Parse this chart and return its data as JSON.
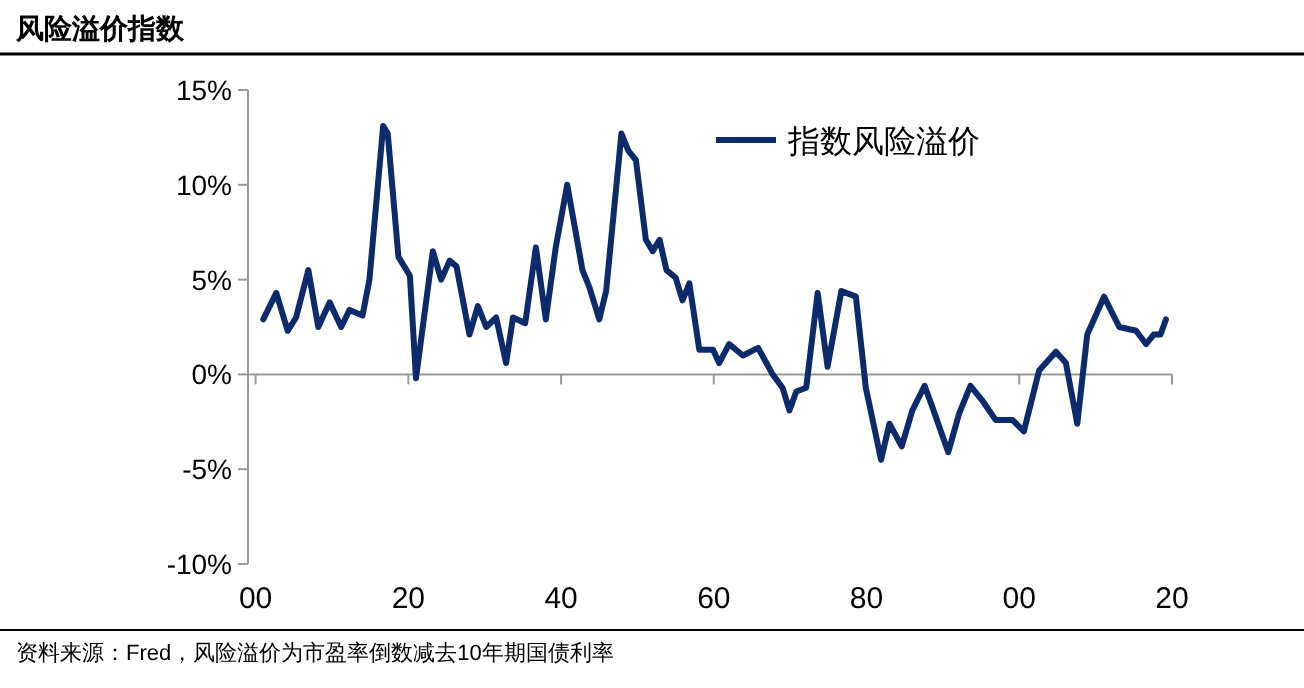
{
  "chart_data": {
    "type": "line",
    "title": "风险溢价指数",
    "annotations": [
      "资料来源：Fred，风险溢价为市盈率倒数减去10年期国债利率"
    ],
    "xlim": [
      1899,
      2020
    ],
    "xticks": [
      {
        "value": 1900,
        "label": "00"
      },
      {
        "value": 1920,
        "label": "20"
      },
      {
        "value": 1940,
        "label": "40"
      },
      {
        "value": 1960,
        "label": "60"
      },
      {
        "value": 1980,
        "label": "80"
      },
      {
        "value": 2000,
        "label": "00"
      },
      {
        "value": 2020,
        "label": "20"
      }
    ],
    "ylim": [
      -10,
      15
    ],
    "yticks": [
      {
        "value": -10,
        "label": "-10%"
      },
      {
        "value": -5,
        "label": "-5%"
      },
      {
        "value": 0,
        "label": "0%"
      },
      {
        "value": 5,
        "label": "5%"
      },
      {
        "value": 10,
        "label": "10%"
      },
      {
        "value": 15,
        "label": "15%"
      }
    ],
    "legend": "top right",
    "series": [
      {
        "name": "指数风险溢价",
        "color": "#0d2a6b",
        "x": [
          1901,
          1902.7,
          1904.2,
          1905.3,
          1906.9,
          1908.2,
          1909.7,
          1911.2,
          1912.3,
          1914,
          1914.9,
          1916.7,
          1917.3,
          1918.7,
          1920.2,
          1921,
          1923.2,
          1924.3,
          1925.4,
          1926.3,
          1928,
          1929.1,
          1930.2,
          1931.5,
          1932.8,
          1933.7,
          1935.3,
          1936.7,
          1938,
          1939.3,
          1940.8,
          1942.8,
          1943.7,
          1945,
          1945.9,
          1947.9,
          1948.8,
          1949.8,
          1951.1,
          1952,
          1952.9,
          1953.8,
          1955,
          1955.9,
          1956.8,
          1958.1,
          1959.9,
          1960.7,
          1962,
          1963.8,
          1965.8,
          1967.7,
          1969,
          1969.9,
          1970.8,
          1972.1,
          1973.6,
          1974.9,
          1976.7,
          1978.6,
          1979.9,
          1981.9,
          1983,
          1984.6,
          1986,
          1987.6,
          1988.6,
          1990.7,
          1992.1,
          1993.6,
          1995.2,
          1996.9,
          1999.1,
          2000.6,
          2002.6,
          2004.8,
          2006.1,
          2007.6,
          2008.9,
          2011.1,
          2013.1,
          2015.3,
          2016.6,
          2017.6,
          2018.5,
          2019.2
        ],
        "values": [
          2.9,
          4.3,
          2.3,
          3.0,
          5.5,
          2.5,
          3.8,
          2.5,
          3.4,
          3.1,
          5.0,
          13.1,
          12.7,
          6.2,
          5.2,
          -0.2,
          6.5,
          5.0,
          6.0,
          5.7,
          2.1,
          3.6,
          2.5,
          3.0,
          0.6,
          3.0,
          2.7,
          6.7,
          2.9,
          6.7,
          10.0,
          5.5,
          4.6,
          2.9,
          4.4,
          12.7,
          11.8,
          11.3,
          7.1,
          6.5,
          7.1,
          5.5,
          5.1,
          3.9,
          4.8,
          1.3,
          1.3,
          0.6,
          1.6,
          1.0,
          1.4,
          0.0,
          -0.7,
          -1.9,
          -0.9,
          -0.7,
          4.3,
          0.4,
          4.4,
          4.1,
          -0.7,
          -4.5,
          -2.6,
          -3.8,
          -1.9,
          -0.6,
          -1.7,
          -4.1,
          -2.1,
          -0.6,
          -1.4,
          -2.4,
          -2.4,
          -3.0,
          0.2,
          1.2,
          0.6,
          -2.6,
          2.1,
          4.1,
          2.5,
          2.3,
          1.6,
          2.1,
          2.1,
          2.9
        ]
      }
    ]
  }
}
